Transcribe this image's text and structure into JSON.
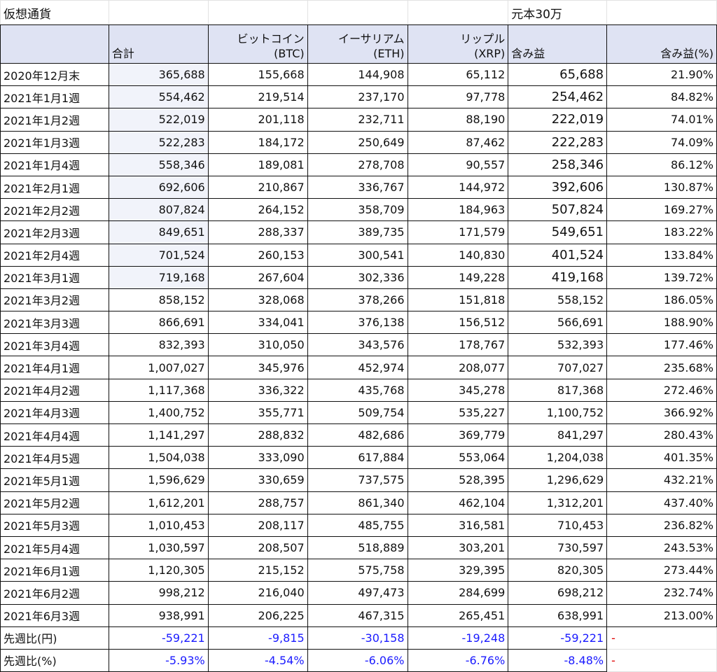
{
  "title": "仮想通貨",
  "principal_label": "元本30万",
  "headers": {
    "blank": "",
    "total": "合計",
    "btc_line1": "ビットコイン",
    "btc_line2": "(BTC)",
    "eth_line1": "イーサリアム",
    "eth_line2": "(ETH)",
    "xrp_line1": "リップル",
    "xrp_line2": "(XRP)",
    "profit": "含み益",
    "profit_pct": "含み益(%)"
  },
  "rows": [
    {
      "label": "2020年12月末",
      "total": "365,688",
      "btc": "155,668",
      "eth": "144,908",
      "xrp": "65,112",
      "profit": "65,688",
      "pct": "21.90%"
    },
    {
      "label": "2021年1月1週",
      "total": "554,462",
      "btc": "219,514",
      "eth": "237,170",
      "xrp": "97,778",
      "profit": "254,462",
      "pct": "84.82%"
    },
    {
      "label": "2021年1月2週",
      "total": "522,019",
      "btc": "201,118",
      "eth": "232,711",
      "xrp": "88,190",
      "profit": "222,019",
      "pct": "74.01%"
    },
    {
      "label": "2021年1月3週",
      "total": "522,283",
      "btc": "184,172",
      "eth": "250,649",
      "xrp": "87,462",
      "profit": "222,283",
      "pct": "74.09%"
    },
    {
      "label": "2021年1月4週",
      "total": "558,346",
      "btc": "189,081",
      "eth": "278,708",
      "xrp": "90,557",
      "profit": "258,346",
      "pct": "86.12%"
    },
    {
      "label": "2021年2月1週",
      "total": "692,606",
      "btc": "210,867",
      "eth": "336,767",
      "xrp": "144,972",
      "profit": "392,606",
      "pct": "130.87%"
    },
    {
      "label": "2021年2月2週",
      "total": "807,824",
      "btc": "264,152",
      "eth": "358,709",
      "xrp": "184,963",
      "profit": "507,824",
      "pct": "169.27%"
    },
    {
      "label": "2021年2月3週",
      "total": "849,651",
      "btc": "288,337",
      "eth": "389,735",
      "xrp": "171,579",
      "profit": "549,651",
      "pct": "183.22%"
    },
    {
      "label": "2021年2月4週",
      "total": "701,524",
      "btc": "260,153",
      "eth": "300,541",
      "xrp": "140,830",
      "profit": "401,524",
      "pct": "133.84%"
    },
    {
      "label": "2021年3月1週",
      "total": "719,168",
      "btc": "267,604",
      "eth": "302,336",
      "xrp": "149,228",
      "profit": "419,168",
      "pct": "139.72%"
    },
    {
      "label": "2021年3月2週",
      "total": "858,152",
      "btc": "328,068",
      "eth": "378,266",
      "xrp": "151,818",
      "profit": "558,152",
      "pct": "186.05%"
    },
    {
      "label": "2021年3月3週",
      "total": "866,691",
      "btc": "334,041",
      "eth": "376,138",
      "xrp": "156,512",
      "profit": "566,691",
      "pct": "188.90%"
    },
    {
      "label": "2021年3月4週",
      "total": "832,393",
      "btc": "310,050",
      "eth": "343,576",
      "xrp": "178,767",
      "profit": "532,393",
      "pct": "177.46%"
    },
    {
      "label": "2021年4月1週",
      "total": "1,007,027",
      "btc": "345,976",
      "eth": "452,974",
      "xrp": "208,077",
      "profit": "707,027",
      "pct": "235.68%"
    },
    {
      "label": "2021年4月2週",
      "total": "1,117,368",
      "btc": "336,322",
      "eth": "435,768",
      "xrp": "345,278",
      "profit": "817,368",
      "pct": "272.46%"
    },
    {
      "label": "2021年4月3週",
      "total": "1,400,752",
      "btc": "355,771",
      "eth": "509,754",
      "xrp": "535,227",
      "profit": "1,100,752",
      "pct": "366.92%"
    },
    {
      "label": "2021年4月4週",
      "total": "1,141,297",
      "btc": "288,832",
      "eth": "482,686",
      "xrp": "369,779",
      "profit": "841,297",
      "pct": "280.43%"
    },
    {
      "label": "2021年4月5週",
      "total": "1,504,038",
      "btc": "333,090",
      "eth": "617,884",
      "xrp": "553,064",
      "profit": "1,204,038",
      "pct": "401.35%"
    },
    {
      "label": "2021年5月1週",
      "total": "1,596,629",
      "btc": "330,659",
      "eth": "737,575",
      "xrp": "528,395",
      "profit": "1,296,629",
      "pct": "432.21%"
    },
    {
      "label": "2021年5月2週",
      "total": "1,612,201",
      "btc": "288,757",
      "eth": "861,340",
      "xrp": "462,104",
      "profit": "1,312,201",
      "pct": "437.40%"
    },
    {
      "label": "2021年5月3週",
      "total": "1,010,453",
      "btc": "208,117",
      "eth": "485,755",
      "xrp": "316,581",
      "profit": "710,453",
      "pct": "236.82%"
    },
    {
      "label": "2021年5月4週",
      "total": "1,030,597",
      "btc": "208,507",
      "eth": "518,889",
      "xrp": "303,201",
      "profit": "730,597",
      "pct": "243.53%"
    },
    {
      "label": "2021年6月1週",
      "total": "1,120,305",
      "btc": "215,152",
      "eth": "575,758",
      "xrp": "329,395",
      "profit": "820,305",
      "pct": "273.44%"
    },
    {
      "label": "2021年6月2週",
      "total": "998,212",
      "btc": "216,040",
      "eth": "497,473",
      "xrp": "284,699",
      "profit": "698,212",
      "pct": "232.74%"
    },
    {
      "label": "2021年6月3週",
      "total": "938,991",
      "btc": "206,225",
      "eth": "467,315",
      "xrp": "265,451",
      "profit": "638,991",
      "pct": "213.00%"
    }
  ],
  "footer": [
    {
      "label": "先週比(円)",
      "total": "-59,221",
      "btc": "-9,815",
      "eth": "-30,158",
      "xrp": "-19,248",
      "profit": "-59,221",
      "dash": "-"
    },
    {
      "label": "先週比(%)",
      "total": "-5.93%",
      "btc": "-4.54%",
      "eth": "-6.06%",
      "xrp": "-6.76%",
      "profit": "-8.48%",
      "dash": "-"
    }
  ],
  "colors": {
    "header_bg": "#dfe3f3",
    "shade_bg": "#f1f3fa",
    "negative_blue": "#1a1aff",
    "dash_red": "#e00000"
  }
}
